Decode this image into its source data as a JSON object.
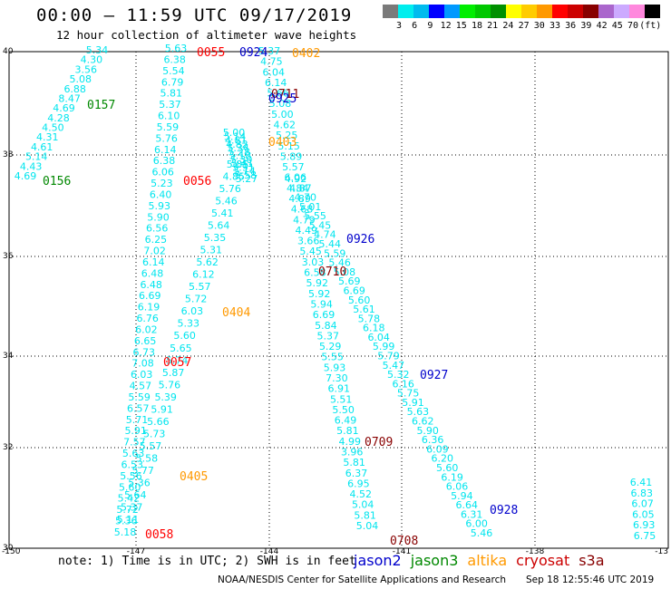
{
  "header": {
    "title": "00:00 – 11:59 UTC 09/17/2019",
    "subtitle": "12 hour collection of altimeter wave heights"
  },
  "color_scale": {
    "swatches": [
      "#7a7a7a",
      "#00eeee",
      "#00bbee",
      "#0000ff",
      "#0099ff",
      "#00ee00",
      "#00c800",
      "#009000",
      "#ffff00",
      "#ffcc00",
      "#ff9900",
      "#ff0000",
      "#cc0000",
      "#880000",
      "#aa66cc",
      "#ccaaff",
      "#ff88dd",
      "#000000"
    ],
    "labels": [
      "3",
      "6",
      "9",
      "12",
      "15",
      "18",
      "21",
      "24",
      "27",
      "30",
      "33",
      "36",
      "39",
      "42",
      "45",
      "70",
      "(ft)"
    ]
  },
  "axes": {
    "lat_labels": [
      "40",
      "38",
      "36",
      "34",
      "32",
      "30"
    ],
    "lon_labels": [
      "-150",
      "-147",
      "-144",
      "-141",
      "-138",
      "-13"
    ]
  },
  "pass_labels": [
    {
      "text": "0055",
      "color": "#ff0000"
    },
    {
      "text": "0924",
      "color": "#0000cc"
    },
    {
      "text": "0402",
      "color": "#ff9900"
    },
    {
      "text": "0711",
      "color": "#880000"
    },
    {
      "text": "0925",
      "color": "#0000cc"
    },
    {
      "text": "0157",
      "color": "#008800"
    },
    {
      "text": "0403",
      "color": "#ff9900"
    },
    {
      "text": "0156",
      "color": "#008800"
    },
    {
      "text": "0056",
      "color": "#ff0000"
    },
    {
      "text": "0926",
      "color": "#0000cc"
    },
    {
      "text": "0710",
      "color": "#880000"
    },
    {
      "text": "0404",
      "color": "#ff9900"
    },
    {
      "text": "0057",
      "color": "#ff0000"
    },
    {
      "text": "0927",
      "color": "#0000cc"
    },
    {
      "text": "0709",
      "color": "#880000"
    },
    {
      "text": "0405",
      "color": "#ff9900"
    },
    {
      "text": "0928",
      "color": "#0000cc"
    },
    {
      "text": "0058",
      "color": "#ff0000"
    },
    {
      "text": "0708",
      "color": "#880000"
    }
  ],
  "tracks": {
    "t0157": [
      "5.34",
      "4.30",
      "3.56",
      "5.08",
      "6.88",
      "8.47",
      "4.69",
      "4.28",
      "4.50",
      "4.31",
      "4.61",
      "5.14",
      "4.43",
      "4.69"
    ],
    "t0056": [
      "5.63",
      "6.38",
      "5.54",
      "6.79",
      "5.81",
      "5.37",
      "6.10",
      "5.59",
      "5.76",
      "6.14",
      "6.38",
      "6.06",
      "5.23",
      "6.40",
      "5.93",
      "5.90",
      "6.56",
      "6.25",
      "7.02",
      "6.14",
      "6.48",
      "6.48",
      "6.69",
      "6.19",
      "6.76",
      "6.02",
      "6.65",
      "6.73",
      "7.08",
      "6.03",
      "4.57",
      "5.59",
      "6.57",
      "5.71",
      "5.91",
      "7.57",
      "5.63",
      "6.53",
      "5.56",
      "5.60",
      "5.42",
      "5.72",
      "5.36",
      "5.18"
    ],
    "t0404": [
      "5.85",
      "4.85",
      "5.76",
      "5.46",
      "5.41",
      "5.64",
      "5.35",
      "5.31",
      "5.62",
      "6.12",
      "5.57",
      "5.72",
      "6.03",
      "5.33",
      "5.60",
      "5.65",
      "5.74",
      "5.87",
      "5.76",
      "5.39",
      "5.91",
      "5.66",
      "5.73",
      "5.57",
      "5.58",
      "5.77",
      "5.36",
      "5.64",
      "5.37",
      "5.11"
    ],
    "t0403": [
      "5.00",
      "5.14",
      "4.81",
      "4.82",
      "5.34",
      "5.28",
      "5.18",
      "5.30",
      "5.41",
      "5.91",
      "5.14",
      "5.58",
      "5.27"
    ],
    "t0710": [
      "5.37",
      "4.75",
      "6.04",
      "6.14",
      "5.66",
      "5.08",
      "5.00",
      "4.62",
      "5.25",
      "5.15",
      "5.89",
      "5.57",
      "6.06",
      "4.84",
      "4.89",
      "4.68",
      "4.79",
      "4.49",
      "3.66",
      "5.45",
      "3.03",
      "6.58",
      "5.92",
      "5.92",
      "5.94",
      "6.69",
      "5.84",
      "5.37",
      "5.29",
      "5.55",
      "5.93",
      "7.30",
      "6.91",
      "5.51",
      "5.50",
      "6.49",
      "5.81",
      "4.99",
      "3.96",
      "5.81",
      "6.37",
      "6.95",
      "4.52",
      "5.04",
      "5.81",
      "5.04"
    ],
    "t0926": [
      "4.92",
      "4.87",
      "4.70",
      "5.01",
      "5.55",
      "5.45",
      "4.74",
      "5.44",
      "5.59",
      "5.46",
      "5.08",
      "5.69",
      "6.69",
      "5.60",
      "5.61",
      "5.78",
      "6.18",
      "6.04",
      "5.99",
      "5.79",
      "5.47",
      "5.32",
      "6.16",
      "5.75",
      "5.91",
      "5.63",
      "6.62",
      "5.90",
      "6.36",
      "6.09",
      "6.20",
      "5.60",
      "6.19",
      "6.06",
      "5.94",
      "6.64",
      "6.31",
      "6.00",
      "5.46"
    ],
    "t0928": [
      "6.41",
      "6.83",
      "6.07",
      "6.05",
      "6.93",
      "6.75"
    ]
  },
  "footer": {
    "note": "note: 1) Time is in UTC; 2) SWH is in feet",
    "legend": [
      {
        "text": "jason2",
        "color": "#0000cc"
      },
      {
        "text": "jason3",
        "color": "#008800"
      },
      {
        "text": "altika",
        "color": "#ff9900"
      },
      {
        "text": "cryosat",
        "color": "#cc0000"
      },
      {
        "text": "s3a",
        "color": "#880000"
      }
    ],
    "credit": "NOAA/NESDIS Center for Satellite Applications and Research",
    "timestamp": "Sep 18 12:55:46 UTC 2019"
  }
}
